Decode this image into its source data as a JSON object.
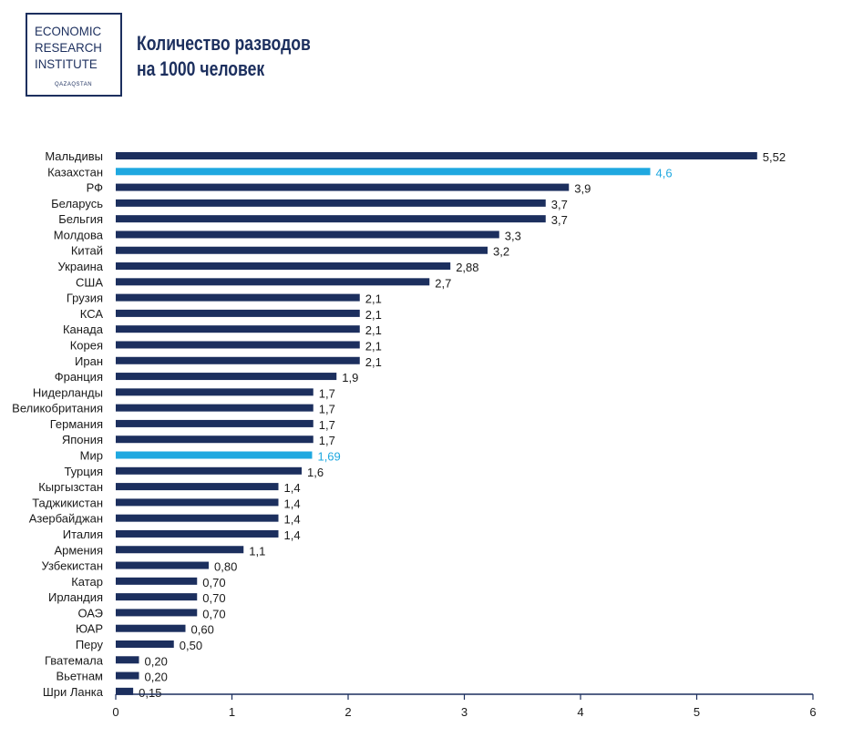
{
  "logo": {
    "line1": "ECONOMIC",
    "line2": "RESEARCH",
    "line3": "INSTITUTE",
    "sub": "QAZAQSTAN"
  },
  "title": {
    "line1": "Количество разводов",
    "line2": "на 1000 человек"
  },
  "colors": {
    "bar": "#1c2f5e",
    "highlight": "#1fa8e0",
    "axis": "#1c2f5e"
  },
  "chart_data": {
    "type": "bar",
    "orientation": "horizontal",
    "title": "Количество разводов на 1000 человек",
    "xlim": [
      0,
      6
    ],
    "x_ticks": [
      "0",
      "1",
      "2",
      "3",
      "4",
      "5",
      "6"
    ],
    "grid": false,
    "categories": [
      "Мальдивы",
      "Казахстан",
      "РФ",
      "Беларусь",
      "Бельгия",
      "Молдова",
      "Китай",
      "Украина",
      "США",
      "Грузия",
      "КСА",
      "Канада",
      "Корея",
      "Иран",
      "Франция",
      "Нидерланды",
      "Великобритания",
      "Германия",
      "Япония",
      "Мир",
      "Турция",
      "Кыргызстан",
      "Таджикистан",
      "Азербайджан",
      "Италия",
      "Армения",
      "Узбекистан",
      "Катар",
      "Ирландия",
      "ОАЭ",
      "ЮАР",
      "Перу",
      "Гватемала",
      "Вьетнам",
      "Шри Ланка"
    ],
    "values": [
      5.52,
      4.6,
      3.9,
      3.7,
      3.7,
      3.3,
      3.2,
      2.88,
      2.7,
      2.1,
      2.1,
      2.1,
      2.1,
      2.1,
      1.9,
      1.7,
      1.7,
      1.7,
      1.7,
      1.69,
      1.6,
      1.4,
      1.4,
      1.4,
      1.4,
      1.1,
      0.8,
      0.7,
      0.7,
      0.7,
      0.6,
      0.5,
      0.2,
      0.2,
      0.15
    ],
    "value_labels": [
      "5,52",
      "4,6",
      "3,9",
      "3,7",
      "3,7",
      "3,3",
      "3,2",
      "2,88",
      "2,7",
      "2,1",
      "2,1",
      "2,1",
      "2,1",
      "2,1",
      "1,9",
      "1,7",
      "1,7",
      "1,7",
      "1,7",
      "1,69",
      "1,6",
      "1,4",
      "1,4",
      "1,4",
      "1,4",
      "1,1",
      "0,80",
      "0,70",
      "0,70",
      "0,70",
      "0,60",
      "0,50",
      "0,20",
      "0,20",
      "0,15"
    ],
    "highlighted": [
      "Казахстан",
      "Мир"
    ]
  }
}
